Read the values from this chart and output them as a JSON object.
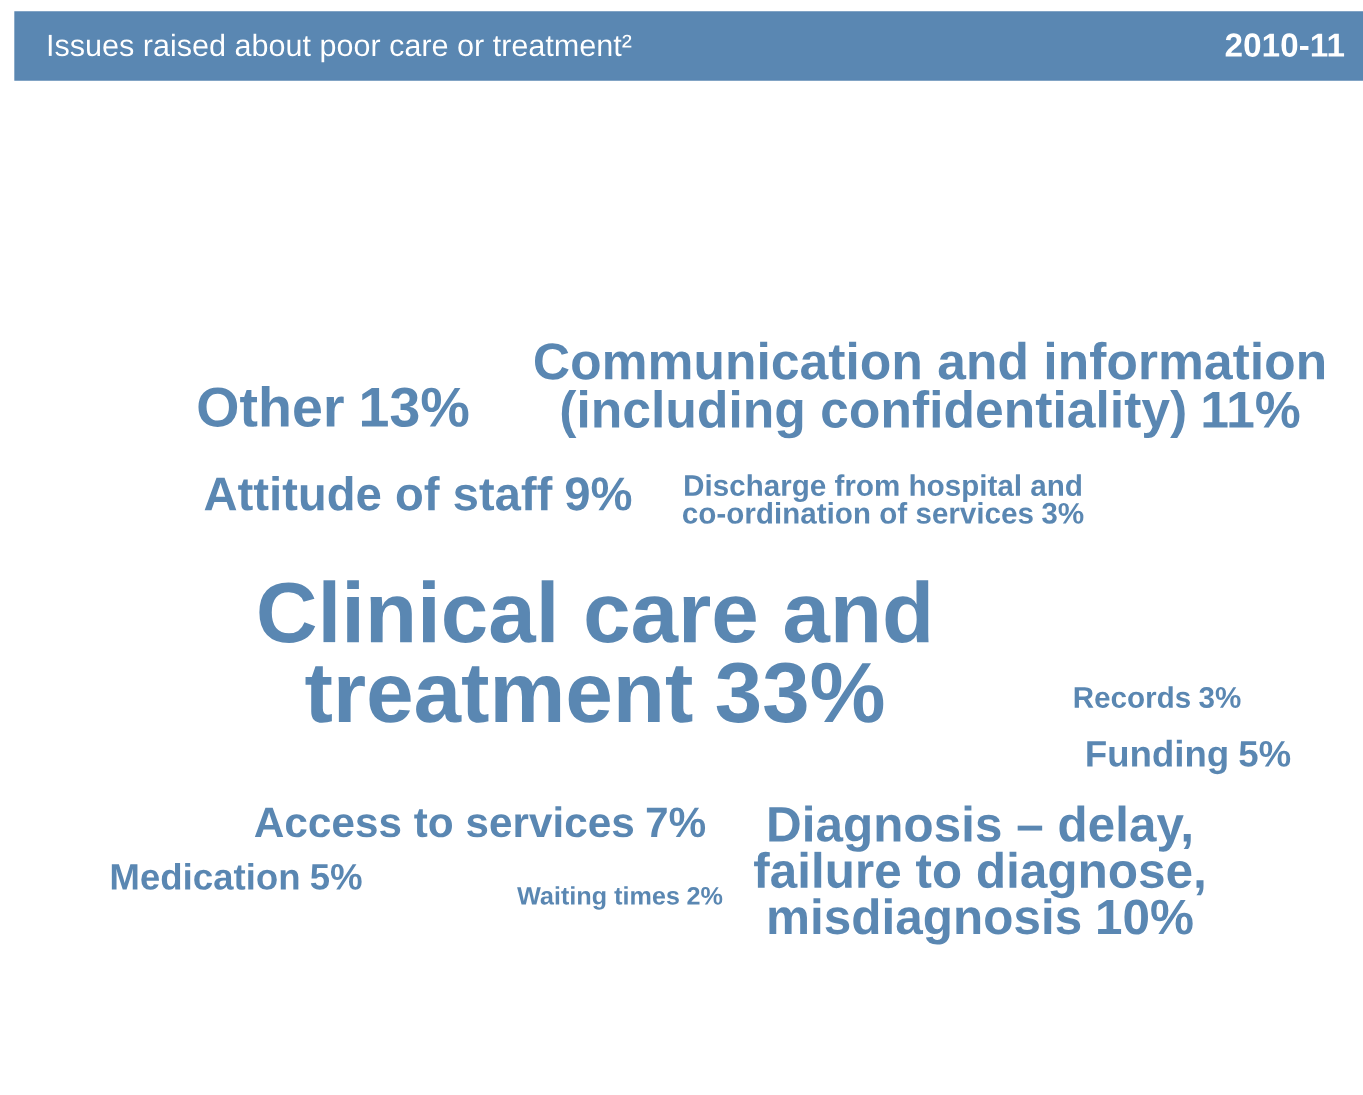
{
  "chart_data": {
    "type": "other",
    "title": "Issues raised about poor care or treatment²",
    "subtitle": "2010-11",
    "categories": [
      "Other",
      "Communication and information\n(including confidentiality)",
      "Attitude of staff",
      "Discharge from hospital and\nco-ordination of services",
      "Clinical care and\ntreatment",
      "Records",
      "Funding",
      "Access to services",
      "Diagnosis – delay,\nfailure to diagnose,\nmisdiagnosis",
      "Medication",
      "Waiting times"
    ],
    "values": [
      13,
      11,
      9,
      3,
      33,
      3,
      5,
      7,
      10,
      5,
      2
    ],
    "value_labels": [
      "13%",
      "11%",
      "9%",
      "3%",
      "33%",
      "3%",
      "5%",
      "7%",
      "10%",
      "5%",
      "2%"
    ],
    "color": "#5a87b2"
  }
}
